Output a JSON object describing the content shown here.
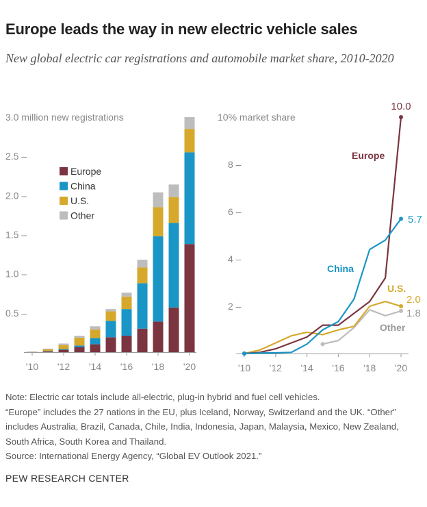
{
  "title": "Europe leads the way in new electric vehicle sales",
  "subtitle": "New global electric car registrations and automobile market share, 2010-2020",
  "colors": {
    "Europe": "#7a3540",
    "China": "#1a96c6",
    "U.S.": "#d6a82c",
    "Other": "#bdbdbd"
  },
  "chart_data": [
    {
      "type": "bar",
      "stacked": true,
      "ylabel": "3.0 million new registrations",
      "ylim": [
        0,
        3.0
      ],
      "yticks": [
        "0.5",
        "1.0",
        "1.5",
        "2.0",
        "2.5"
      ],
      "xtick_labels": [
        "'10",
        "'12",
        "'14",
        "'16",
        "'18",
        "'20"
      ],
      "categories": [
        2010,
        2011,
        2012,
        2013,
        2014,
        2015,
        2016,
        2017,
        2018,
        2019,
        2020
      ],
      "legend": "upper-left",
      "series": [
        {
          "name": "Europe",
          "values": [
            0.003,
            0.01,
            0.03,
            0.065,
            0.1,
            0.19,
            0.21,
            0.3,
            0.39,
            0.57,
            1.38
          ]
        },
        {
          "name": "China",
          "values": [
            0.001,
            0.005,
            0.01,
            0.02,
            0.08,
            0.21,
            0.34,
            0.58,
            1.09,
            1.08,
            1.17
          ]
        },
        {
          "name": "U.S.",
          "values": [
            0.001,
            0.02,
            0.05,
            0.1,
            0.11,
            0.12,
            0.16,
            0.2,
            0.37,
            0.33,
            0.3
          ]
        },
        {
          "name": "Other",
          "values": [
            0.001,
            0.01,
            0.02,
            0.025,
            0.04,
            0.03,
            0.05,
            0.1,
            0.19,
            0.16,
            0.15
          ]
        }
      ]
    },
    {
      "type": "line",
      "ylabel": "10% market share",
      "ylim": [
        0,
        10
      ],
      "yticks": [
        "2",
        "4",
        "6",
        "8"
      ],
      "xtick_labels": [
        "'10",
        "'12",
        "'14",
        "'16",
        "'18",
        "'20"
      ],
      "x": [
        2010,
        2011,
        2012,
        2013,
        2014,
        2015,
        2016,
        2017,
        2018,
        2019,
        2020
      ],
      "series": [
        {
          "name": "Europe",
          "values": [
            0,
            0.05,
            0.2,
            0.45,
            0.7,
            1.2,
            1.2,
            1.7,
            2.2,
            3.2,
            10.0
          ],
          "end_label": "10.0"
        },
        {
          "name": "China",
          "values": [
            0,
            0.02,
            0.03,
            0.05,
            0.4,
            1.0,
            1.35,
            2.3,
            4.4,
            4.8,
            5.7
          ],
          "end_label": "5.7"
        },
        {
          "name": "U.S.",
          "values": [
            0,
            0.15,
            0.45,
            0.75,
            0.9,
            0.8,
            1.0,
            1.15,
            2.0,
            2.2,
            2.0
          ],
          "end_label": "2.0"
        },
        {
          "name": "Other",
          "values": [
            null,
            null,
            null,
            null,
            null,
            0.4,
            0.55,
            1.1,
            1.85,
            1.6,
            1.8
          ],
          "end_label": "1.8"
        }
      ]
    }
  ],
  "notes": [
    "Note: Electric car totals include all-electric, plug-in hybrid and fuel cell vehicles.",
    "“Europe” includes the 27 nations in the EU, plus Iceland, Norway, Switzerland and the UK. “Other” includes Australia, Brazil, Canada, Chile, India, Indonesia, Japan, Malaysia, Mexico, New Zealand, South Africa, South Korea and Thailand.",
    "Source: International Energy Agency, “Global EV Outlook 2021.”"
  ],
  "brand": "PEW RESEARCH CENTER"
}
